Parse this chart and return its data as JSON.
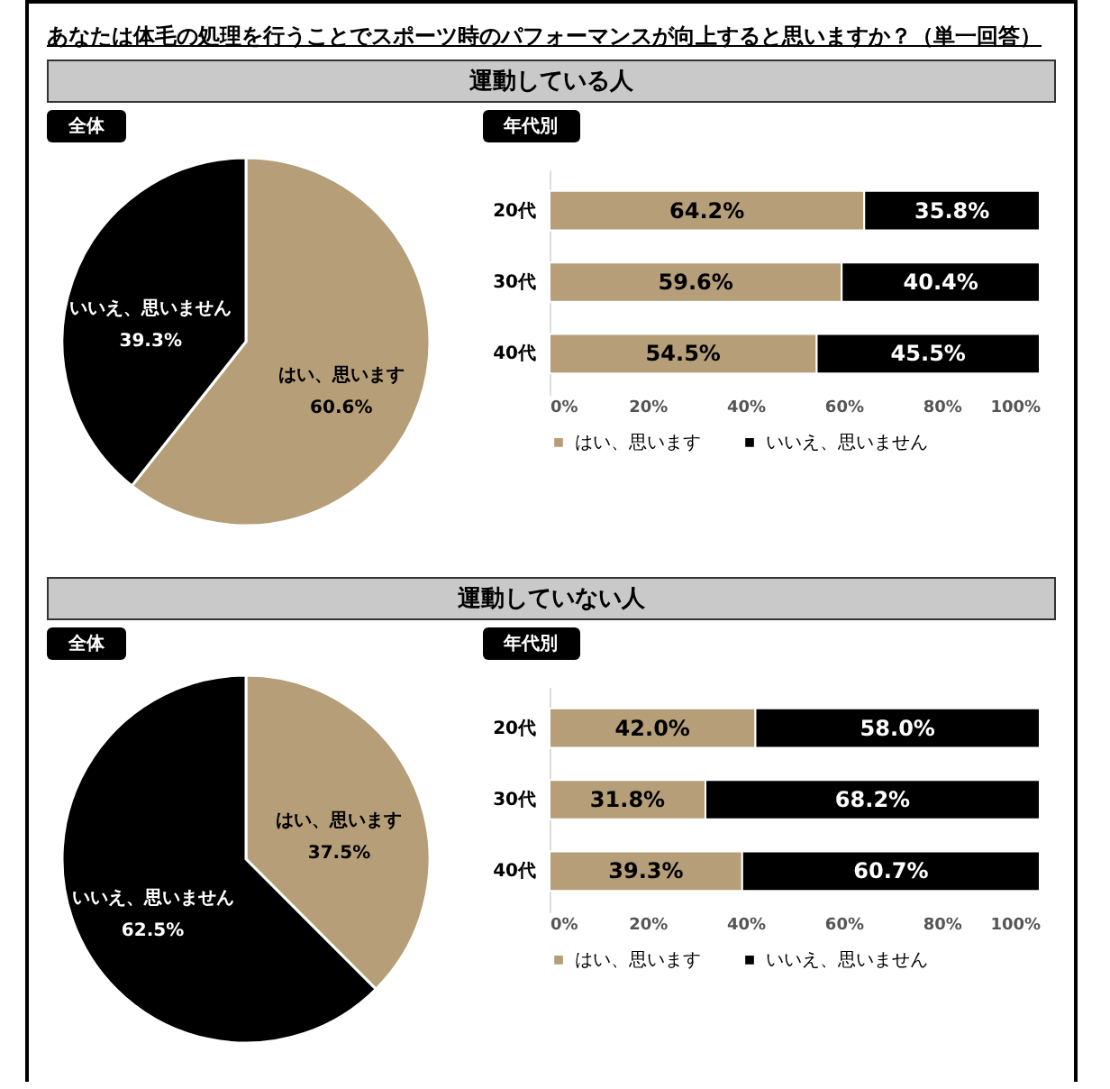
{
  "chart_data": [
    {
      "type": "pie",
      "title": "全体",
      "annotations": [
        "あなたは体毛の処理を行うことでスポーツ時のパフォーマンスが向上すると思いますか？（単一回答）"
      ],
      "categories": [
        "はい、思います",
        "いいえ、思いません"
      ],
      "values": [
        60.6,
        39.3
      ],
      "colors": [
        "#b59e78",
        "#000000"
      ],
      "value_labels": [
        "60.6%",
        "39.3%"
      ]
    },
    {
      "type": "bar",
      "title": "年代別",
      "subtitle": "運動している人",
      "orientation": "horizontal",
      "stacked": true,
      "categories": [
        "20代",
        "30代",
        "40代"
      ],
      "series": [
        {
          "name": "はい、思います",
          "color": "#b59e78",
          "values": [
            64.2,
            59.6,
            54.5
          ],
          "value_labels": [
            "64.2%",
            "59.6%",
            "54.5%"
          ]
        },
        {
          "name": "いいえ、思いません",
          "color": "#000000",
          "values": [
            35.8,
            40.4,
            45.5
          ],
          "value_labels": [
            "35.8%",
            "40.4%",
            "45.5%"
          ]
        }
      ],
      "xlim": [
        0,
        100
      ],
      "xticks": [
        {
          "value": 0,
          "label": "0%"
        },
        {
          "value": 20,
          "label": "20%"
        },
        {
          "value": 40,
          "label": "40%"
        },
        {
          "value": 60,
          "label": "60%"
        },
        {
          "value": 80,
          "label": "80%"
        },
        {
          "value": 100,
          "label": "100%"
        }
      ],
      "grid": false,
      "legend": "bottom"
    },
    {
      "type": "pie",
      "title": "全体",
      "categories": [
        "はい、思います",
        "いいえ、思いません"
      ],
      "values": [
        37.5,
        62.5
      ],
      "colors": [
        "#b59e78",
        "#000000"
      ],
      "value_labels": [
        "37.5%",
        "62.5%"
      ]
    },
    {
      "type": "bar",
      "title": "年代別",
      "subtitle": "運動していない人",
      "orientation": "horizontal",
      "stacked": true,
      "categories": [
        "20代",
        "30代",
        "40代"
      ],
      "series": [
        {
          "name": "はい、思います",
          "color": "#b59e78",
          "values": [
            42.0,
            31.8,
            39.3
          ],
          "value_labels": [
            "42.0%",
            "31.8%",
            "39.3%"
          ]
        },
        {
          "name": "いいえ、思いません",
          "color": "#000000",
          "values": [
            58.0,
            68.2,
            60.7
          ],
          "value_labels": [
            "58.0%",
            "68.2%",
            "60.7%"
          ]
        }
      ],
      "xlim": [
        0,
        100
      ],
      "xticks": [
        {
          "value": 0,
          "label": "0%"
        },
        {
          "value": 20,
          "label": "20%"
        },
        {
          "value": 40,
          "label": "40%"
        },
        {
          "value": 60,
          "label": "60%"
        },
        {
          "value": 80,
          "label": "80%"
        },
        {
          "value": 100,
          "label": "100%"
        }
      ],
      "grid": false,
      "legend": "bottom"
    }
  ]
}
